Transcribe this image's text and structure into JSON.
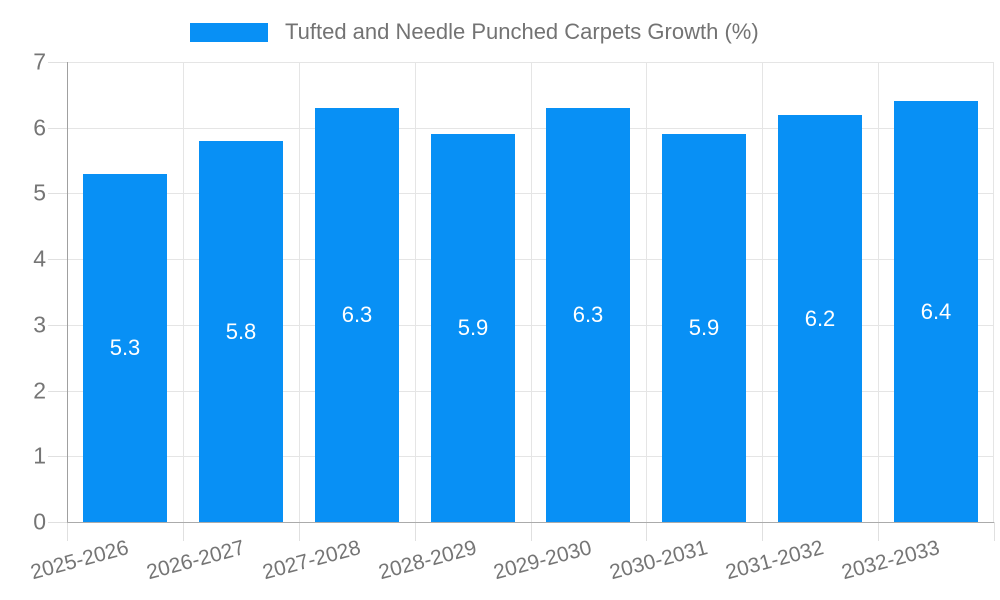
{
  "chart_data": {
    "type": "bar",
    "title": "Tufted and Needle Punched Carpets Growth (%)",
    "categories": [
      "2025-2026",
      "2026-2027",
      "2027-2028",
      "2028-2029",
      "2029-2030",
      "2030-2031",
      "2031-2032",
      "2032-2033"
    ],
    "series": [
      {
        "name": "Tufted and Needle Punched Carpets Growth (%)",
        "values": [
          5.3,
          5.8,
          6.3,
          5.9,
          6.3,
          5.9,
          6.2,
          6.4
        ]
      }
    ],
    "value_labels": [
      "5.3",
      "5.8",
      "6.3",
      "5.9",
      "6.3",
      "5.9",
      "6.2",
      "6.4"
    ],
    "xlabel": "",
    "ylabel": "",
    "ylim": [
      0,
      7
    ],
    "yticks": [
      "0",
      "1",
      "2",
      "3",
      "4",
      "5",
      "6",
      "7"
    ],
    "grid": true,
    "legend_position": "top",
    "x_label_rotation_deg": -15
  },
  "colors": {
    "bar": "#0890f5",
    "value_label": "#ffffff",
    "axis_text": "#757575",
    "legend_text": "#737373",
    "gridline": "#e5e5e5",
    "axis_line": "#a0a0a0"
  }
}
